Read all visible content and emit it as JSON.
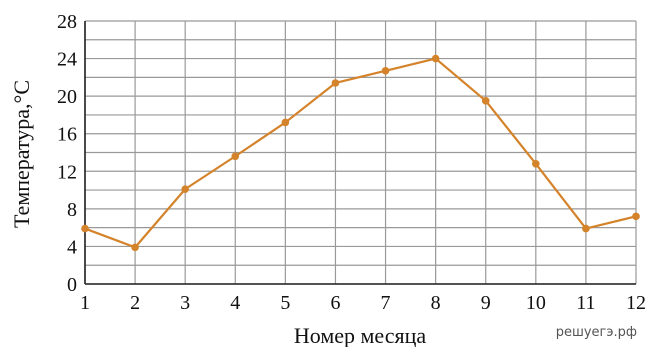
{
  "chart_data": {
    "type": "line",
    "title": "",
    "xlabel": "Номер месяца",
    "ylabel": "Температура,°C",
    "x": [
      1,
      2,
      3,
      4,
      5,
      6,
      7,
      8,
      9,
      10,
      11,
      12
    ],
    "series": [
      {
        "values": [
          5.9,
          3.9,
          10.1,
          13.6,
          17.2,
          21.4,
          22.7,
          24,
          19.5,
          12.8,
          5.9,
          7.2
        ]
      }
    ],
    "x_ticks": [
      1,
      2,
      3,
      4,
      5,
      6,
      7,
      8,
      9,
      10,
      11,
      12
    ],
    "y_ticks": [
      0,
      4,
      8,
      12,
      16,
      20,
      24,
      28
    ],
    "xlim": [
      1,
      12
    ],
    "ylim": [
      0,
      28
    ],
    "y_minor_step": 2,
    "grid": true,
    "line_color": "#d4832a",
    "grid_color": "#999999"
  },
  "watermark": "решуегэ.рф"
}
